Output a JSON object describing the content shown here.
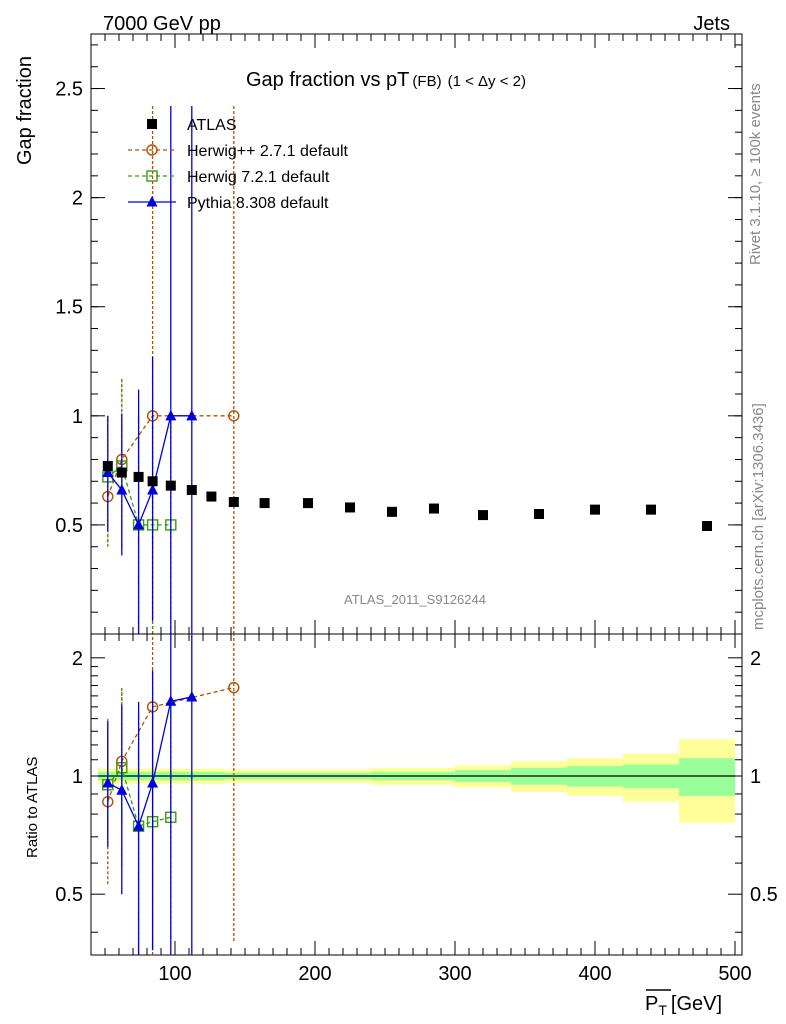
{
  "header": {
    "left": "7000 GeV pp",
    "right": "Jets",
    "title_main": "Gap fraction vs pT",
    "title_sub": "(FB)",
    "title_range": "(1 < Δy < 2)"
  },
  "side_text": {
    "rivet": "Rivet 3.1.10, ≥ 100k events",
    "mcplots": "mcplots.cern.ch [arXiv:1306.3436]"
  },
  "watermark": "ATLAS_2011_S9126244",
  "chart_data": [
    {
      "type": "scatter",
      "panel": "main",
      "ylabel": "Gap fraction",
      "xlim": [
        40,
        505
      ],
      "ylim": [
        0,
        2.75
      ],
      "yticks": [
        "0.5",
        "1",
        "1.5",
        "2",
        "2.5"
      ],
      "legend_position": "top-left",
      "series": [
        {
          "name": "ATLAS",
          "color": "#000000",
          "marker": "filled-square",
          "x": [
            52,
            62,
            74,
            84,
            97,
            112,
            126,
            142,
            164,
            195,
            225,
            255,
            285,
            320,
            360,
            400,
            440,
            480
          ],
          "y": [
            0.77,
            0.74,
            0.72,
            0.7,
            0.68,
            0.66,
            0.63,
            0.605,
            0.6,
            0.6,
            0.58,
            0.56,
            0.575,
            0.545,
            0.55,
            0.57,
            0.57,
            0.495
          ]
        },
        {
          "name": "Herwig++ 2.7.1 default",
          "color": "#b45000",
          "marker": "open-circle",
          "line": "dashed",
          "x": [
            52,
            62,
            84,
            142
          ],
          "y": [
            0.63,
            0.8,
            1.0,
            1.0
          ],
          "err": [
            [
              0.23,
              0.37
            ],
            [
              0.4,
              0.37
            ],
            [
              1.0,
              1.42
            ],
            [
              1.0,
              1.42
            ]
          ]
        },
        {
          "name": "Herwig 7.2.1 default",
          "color": "#3a9a10",
          "marker": "open-square",
          "line": "dashed",
          "x": [
            52,
            62,
            74,
            84,
            97
          ],
          "y": [
            0.72,
            0.77,
            0.5,
            0.5,
            0.5
          ],
          "err": [
            [
              0.3,
              0.28
            ],
            [
              0.35,
              0.4
            ],
            [
              0.5,
              0.5
            ],
            [
              0.5,
              0.5
            ],
            [
              0.5,
              0.5
            ]
          ]
        },
        {
          "name": "Pythia 8.308 default",
          "color": "#0000dd",
          "marker": "filled-triangle",
          "line": "solid",
          "x": [
            52,
            62,
            74,
            84,
            97,
            112
          ],
          "y": [
            0.74,
            0.66,
            0.5,
            0.66,
            1.0,
            1.0
          ],
          "err": [
            [
              0.27,
              0.26
            ],
            [
              0.3,
              0.35
            ],
            [
              0.5,
              0.62
            ],
            [
              0.6,
              0.61
            ],
            [
              1.0,
              1.42
            ],
            [
              1.0,
              1.42
            ]
          ]
        }
      ]
    },
    {
      "type": "scatter",
      "panel": "ratio",
      "xlabel": "P_T [GeV]",
      "ylabel": "Ratio to ATLAS",
      "xlim": [
        40,
        505
      ],
      "xticks": [
        "100",
        "200",
        "300",
        "400",
        "500"
      ],
      "ylim": [
        0.35,
        2.3
      ],
      "log_y": true,
      "yticks": [
        "0.5",
        "1",
        "2"
      ],
      "bands": {
        "x_edges": [
          45,
          100,
          135,
          240,
          300,
          340,
          380,
          420,
          460,
          500
        ],
        "inner": [
          0.025,
          0.025,
          0.02,
          0.025,
          0.035,
          0.05,
          0.06,
          0.07,
          0.11
        ],
        "outer": [
          0.045,
          0.045,
          0.04,
          0.05,
          0.065,
          0.09,
          0.11,
          0.14,
          0.24
        ]
      },
      "series": [
        {
          "name": "Herwig++ 2.7.1 default",
          "color": "#b45000",
          "marker": "open-circle",
          "line": "dashed",
          "x": [
            52,
            62,
            84,
            142
          ],
          "y": [
            0.86,
            1.09,
            1.5,
            1.68
          ],
          "err": [
            [
              0.33,
              0.5
            ],
            [
              0.5,
              0.6
            ],
            [
              1.2,
              1.0
            ],
            [
              1.3,
              0.7
            ]
          ]
        },
        {
          "name": "Herwig 7.2.1 default",
          "color": "#3a9a10",
          "marker": "open-square",
          "line": "dashed",
          "x": [
            52,
            62,
            74,
            84,
            97
          ],
          "y": [
            0.95,
            1.05,
            0.745,
            0.765,
            0.785
          ],
          "err": [
            [
              0.25,
              0.45
            ],
            [
              0.3,
              0.6
            ],
            [
              0.4,
              0.7
            ],
            [
              0.4,
              0.7
            ],
            [
              0.4,
              0.7
            ]
          ]
        },
        {
          "name": "Pythia 8.308 default",
          "color": "#0000dd",
          "marker": "filled-triangle",
          "line": "solid",
          "x": [
            52,
            62,
            74,
            84,
            97,
            112
          ],
          "y": [
            0.96,
            0.92,
            0.745,
            0.96,
            1.55,
            1.59
          ],
          "err": [
            [
              0.3,
              0.42
            ],
            [
              0.42,
              0.6
            ],
            [
              0.4,
              0.8
            ],
            [
              0.6,
              0.9
            ],
            [
              1.2,
              0.75
            ],
            [
              1.25,
              0.7
            ]
          ]
        }
      ]
    }
  ]
}
